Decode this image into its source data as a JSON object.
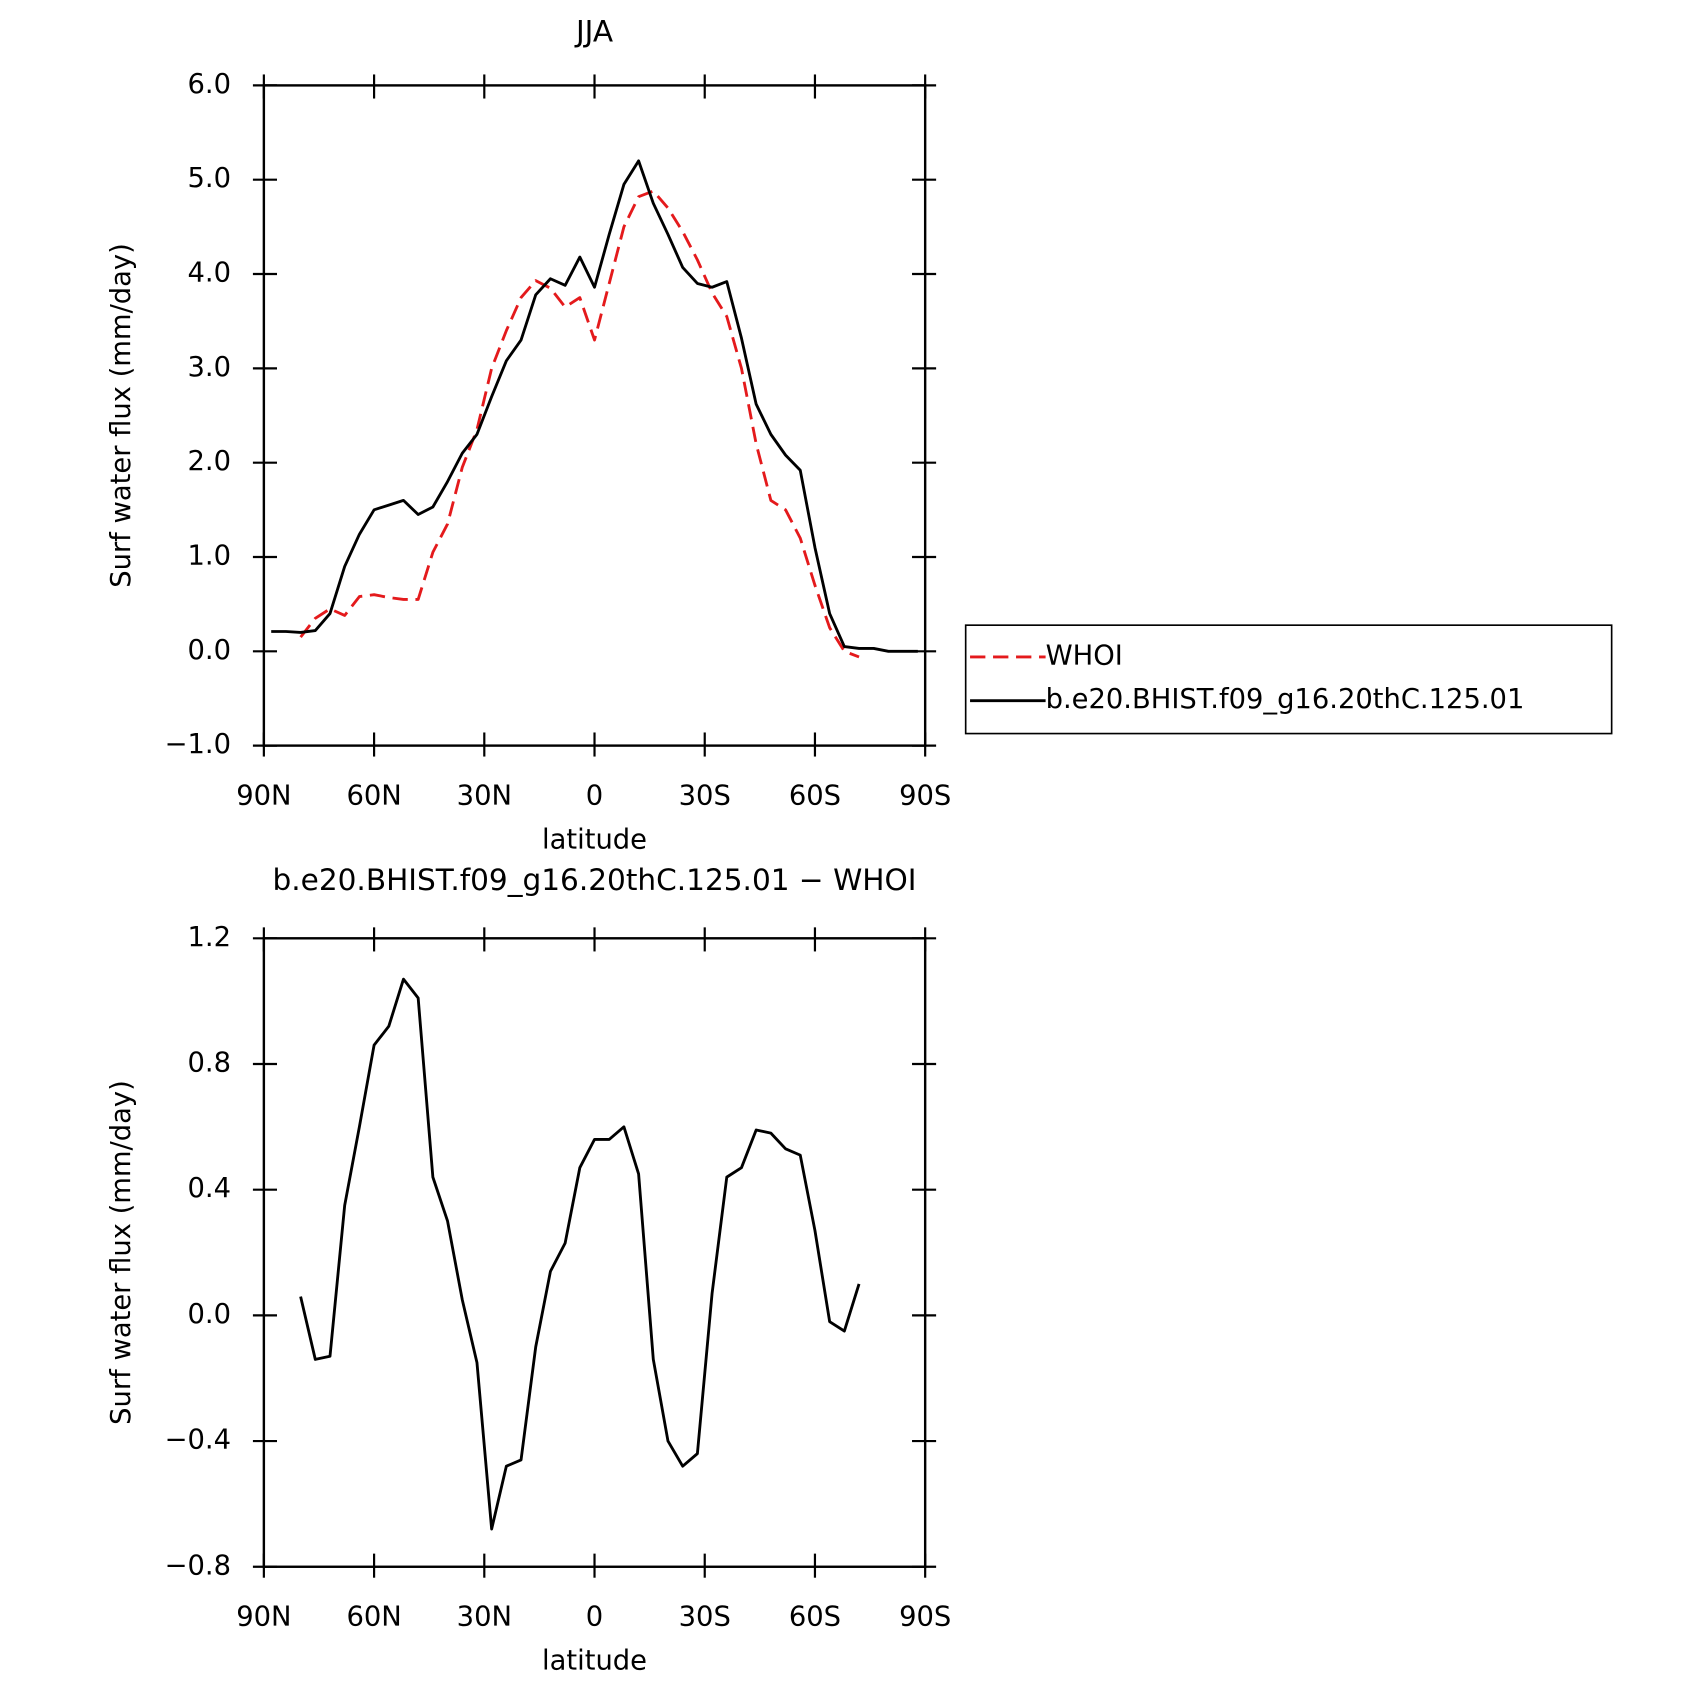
{
  "chart_data": [
    {
      "type": "line",
      "title": "JJA",
      "xlabel": "latitude",
      "ylabel": "Surf water flux (mm/day)",
      "x": [
        88,
        84,
        80,
        76,
        72,
        68,
        64,
        60,
        56,
        52,
        48,
        44,
        40,
        36,
        32,
        28,
        24,
        20,
        16,
        12,
        8,
        4,
        0,
        -4,
        -8,
        -12,
        -16,
        -20,
        -24,
        -28,
        -32,
        -36,
        -40,
        -44,
        -48,
        -52,
        -56,
        -60,
        -64,
        -68,
        -72,
        -76,
        -80,
        -84,
        -88
      ],
      "xlim": [
        90,
        -90
      ],
      "xticks": [
        {
          "value": 90,
          "label": "90N"
        },
        {
          "value": 60,
          "label": "60N"
        },
        {
          "value": 30,
          "label": "30N"
        },
        0,
        {
          "value": -30,
          "label": "30S"
        },
        {
          "value": -60,
          "label": "60S"
        },
        {
          "value": -90,
          "label": "90S"
        }
      ],
      "ylim": [
        -1,
        6
      ],
      "yticks": [
        {
          "value": -1,
          "label": "−1.0"
        },
        {
          "value": 0,
          "label": "0.0"
        },
        {
          "value": 1,
          "label": "1.0"
        },
        {
          "value": 2,
          "label": "2.0"
        },
        {
          "value": 3,
          "label": "3.0"
        },
        {
          "value": 4,
          "label": "4.0"
        },
        {
          "value": 5,
          "label": "5.0"
        },
        {
          "value": 6,
          "label": "6.0"
        }
      ],
      "legend": "right",
      "series": [
        {
          "name": "WHOI",
          "color": "#e41a1c",
          "dashed": true,
          "values": [
            null,
            null,
            0.15,
            0.35,
            0.45,
            0.38,
            0.58,
            0.6,
            0.57,
            0.55,
            0.55,
            1.05,
            1.35,
            1.95,
            2.35,
            3.0,
            3.4,
            3.75,
            3.93,
            3.85,
            3.65,
            3.75,
            3.3,
            3.9,
            4.5,
            4.82,
            4.88,
            4.7,
            4.45,
            4.15,
            3.8,
            3.55,
            3.0,
            2.2,
            1.6,
            1.5,
            1.2,
            0.7,
            0.25,
            0.0,
            -0.06,
            null,
            null,
            null,
            null
          ]
        },
        {
          "name": "b.e20.BHIST.f09_g16.20thC.125.01",
          "color": "#000000",
          "dashed": false,
          "values": [
            0.21,
            0.21,
            0.2,
            0.22,
            0.4,
            0.9,
            1.24,
            1.5,
            1.55,
            1.6,
            1.45,
            1.53,
            1.8,
            2.1,
            2.3,
            2.7,
            3.08,
            3.3,
            3.78,
            3.95,
            3.88,
            4.18,
            3.86,
            4.42,
            4.95,
            5.2,
            4.75,
            4.42,
            4.07,
            3.9,
            3.86,
            3.92,
            3.32,
            2.62,
            2.3,
            2.08,
            1.92,
            1.1,
            0.4,
            0.05,
            0.03,
            0.03,
            0.0,
            0.0,
            0.0
          ]
        }
      ]
    },
    {
      "type": "line",
      "title": "b.e20.BHIST.f09_g16.20thC.125.01 − WHOI",
      "xlabel": "latitude",
      "ylabel": "Surf water flux (mm/day)",
      "x": [
        80,
        76,
        72,
        68,
        64,
        60,
        56,
        52,
        48,
        44,
        40,
        36,
        32,
        28,
        24,
        20,
        16,
        12,
        8,
        4,
        0,
        -4,
        -8,
        -12,
        -16,
        -20,
        -24,
        -28,
        -32,
        -36,
        -40,
        -44,
        -48,
        -52,
        -56,
        -60,
        -64,
        -68,
        -72
      ],
      "xlim": [
        90,
        -90
      ],
      "xticks": [
        {
          "value": 90,
          "label": "90N"
        },
        {
          "value": 60,
          "label": "60N"
        },
        {
          "value": 30,
          "label": "30N"
        },
        0,
        {
          "value": -30,
          "label": "30S"
        },
        {
          "value": -60,
          "label": "60S"
        },
        {
          "value": -90,
          "label": "90S"
        }
      ],
      "ylim": [
        -0.8,
        1.2
      ],
      "yticks": [
        {
          "value": -0.8,
          "label": "−0.8"
        },
        {
          "value": -0.4,
          "label": "−0.4"
        },
        {
          "value": 0,
          "label": "0.0"
        },
        0.4,
        0.8,
        1.2
      ],
      "series": [
        {
          "color": "#000000",
          "dashed": false,
          "values": [
            0.06,
            -0.14,
            -0.13,
            0.35,
            0.6,
            0.86,
            0.92,
            1.07,
            1.01,
            0.44,
            0.3,
            0.05,
            -0.15,
            -0.68,
            -0.48,
            -0.46,
            -0.1,
            0.14,
            0.23,
            0.47,
            0.56,
            0.56,
            0.6,
            0.45,
            -0.14,
            -0.4,
            -0.48,
            -0.44,
            0.07,
            0.44,
            0.47,
            0.59,
            0.58,
            0.53,
            0.51,
            0.27,
            -0.02,
            -0.05,
            0.1
          ]
        }
      ]
    }
  ]
}
